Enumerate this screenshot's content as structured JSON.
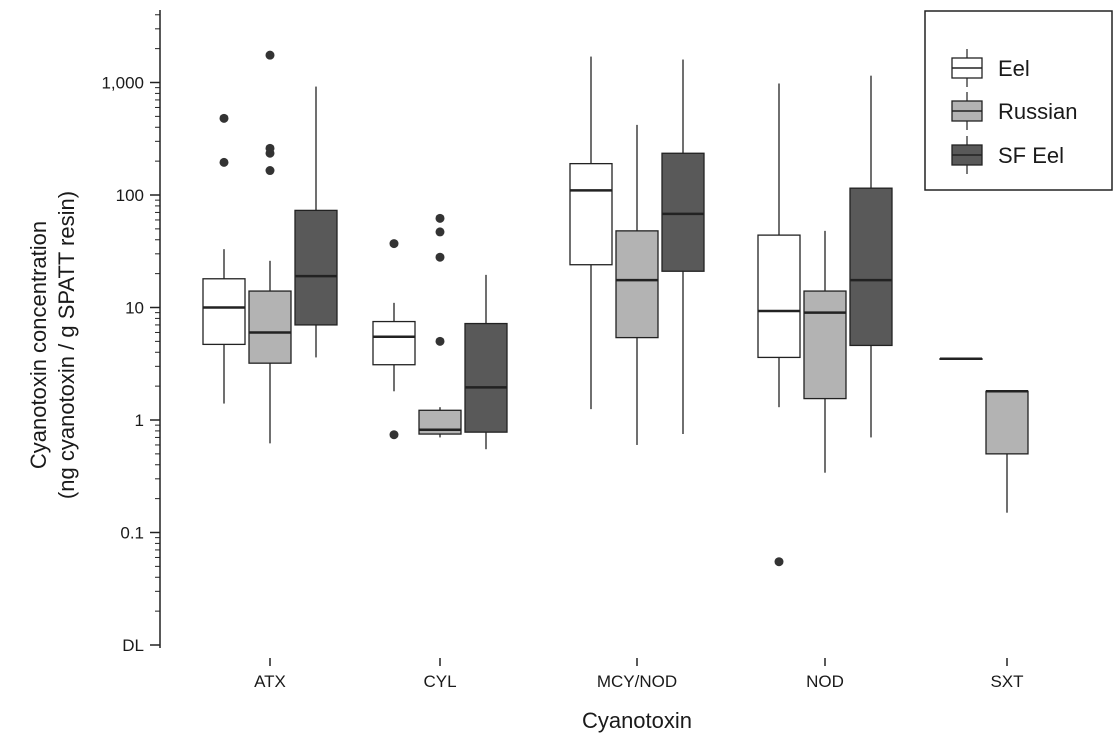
{
  "chart_data": {
    "type": "boxplot",
    "xlabel": "Cyanotoxin",
    "ylabel": [
      "Cyanotoxin concentration",
      "(ng cyanotoxin / g SPATT resin)"
    ],
    "y_scale": "log",
    "ylim": [
      0.01,
      5000
    ],
    "y_ticks": [
      {
        "value": 0.01,
        "label": "DL"
      },
      {
        "value": 0.1,
        "label": "0.1"
      },
      {
        "value": 1,
        "label": "1"
      },
      {
        "value": 10,
        "label": "10"
      },
      {
        "value": 100,
        "label": "100"
      },
      {
        "value": 1000,
        "label": "1,000"
      }
    ],
    "categories": [
      "ATX",
      "CYL",
      "MCY/NOD",
      "NOD",
      "SXT"
    ],
    "legend": {
      "position": "top-right"
    },
    "series": [
      {
        "name": "Eel",
        "color": "#ffffff",
        "boxes": [
          {
            "whisker_low": 1.4,
            "q1": 4.7,
            "median": 10,
            "q3": 18,
            "whisker_high": 33,
            "outliers": [
              195,
              480
            ]
          },
          {
            "whisker_low": 1.8,
            "q1": 3.1,
            "median": 5.5,
            "q3": 7.5,
            "whisker_high": 11,
            "outliers": [
              0.74,
              37
            ]
          },
          {
            "whisker_low": 1.25,
            "q1": 24,
            "median": 110,
            "q3": 190,
            "whisker_high": 1700,
            "outliers": []
          },
          {
            "whisker_low": 1.3,
            "q1": 3.6,
            "median": 9.3,
            "q3": 44,
            "whisker_high": 980,
            "outliers": [
              0.055
            ]
          },
          {
            "whisker_low": 3.5,
            "q1": 3.5,
            "median": 3.5,
            "q3": 3.5,
            "whisker_high": 3.5,
            "outliers": []
          }
        ]
      },
      {
        "name": "Russian",
        "color": "#b3b3b3",
        "boxes": [
          {
            "whisker_low": 0.62,
            "q1": 3.2,
            "median": 6,
            "q3": 14,
            "whisker_high": 26,
            "outliers": [
              165,
              235,
              260,
              1750
            ]
          },
          {
            "whisker_low": 0.7,
            "q1": 0.75,
            "median": 0.82,
            "q3": 1.22,
            "whisker_high": 1.3,
            "outliers": [
              5,
              28,
              47,
              62
            ]
          },
          {
            "whisker_low": 0.6,
            "q1": 5.4,
            "median": 17.5,
            "q3": 48,
            "whisker_high": 420,
            "outliers": []
          },
          {
            "whisker_low": 0.34,
            "q1": 1.55,
            "median": 9,
            "q3": 14,
            "whisker_high": 48,
            "outliers": []
          },
          {
            "whisker_low": 0.15,
            "q1": 0.5,
            "median": 1.8,
            "q3": 1.8,
            "whisker_high": 1.8,
            "outliers": []
          }
        ]
      },
      {
        "name": "SF Eel",
        "color": "#595959",
        "boxes": [
          {
            "whisker_low": 3.6,
            "q1": 7,
            "median": 19,
            "q3": 73,
            "whisker_high": 920,
            "outliers": []
          },
          {
            "whisker_low": 0.55,
            "q1": 0.78,
            "median": 1.95,
            "q3": 7.2,
            "whisker_high": 19.5,
            "outliers": []
          },
          {
            "whisker_low": 0.75,
            "q1": 21,
            "median": 68,
            "q3": 235,
            "whisker_high": 1600,
            "outliers": []
          },
          {
            "whisker_low": 0.7,
            "q1": 4.6,
            "median": 17.5,
            "q3": 115,
            "whisker_high": 1150,
            "outliers": []
          },
          null
        ]
      }
    ]
  }
}
